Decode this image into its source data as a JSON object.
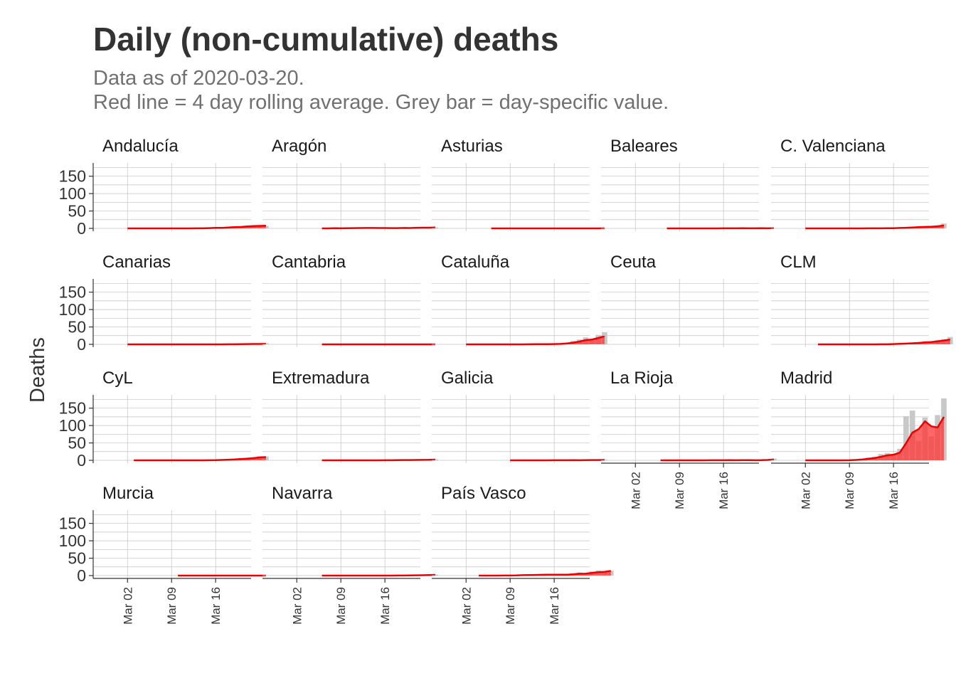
{
  "title": "Daily (non-cumulative) deaths",
  "subtitle_lines": [
    "Data as of 2020-03-20.",
    "Red line = 4 day rolling average. Grey bar = day-specific value."
  ],
  "colors": {
    "rolling_line": "#ee0000",
    "rolling_fill": "#ff3333",
    "bar": "#c8c8c8",
    "grid": "#c0c0c0",
    "axis": "#333333",
    "text": "#333333",
    "strip_text": "#1a1a1a"
  },
  "chart_data": {
    "type": "bar",
    "layout": "faceted small multiples (4 rows x 5 columns), shared axes",
    "ylabel": "Deaths",
    "xlabel": "",
    "x_ticks": [
      "Mar 02",
      "Mar 09",
      "Mar 16"
    ],
    "y_ticks": [
      0,
      50,
      100,
      150
    ],
    "ylim": [
      0,
      180
    ],
    "xlim": [
      "2020-02-26",
      "2020-03-21"
    ],
    "grid": true,
    "series_meaning": {
      "bars": "day-specific value",
      "line": "4 day rolling average"
    },
    "facets": [
      {
        "name": "Andalucía",
        "start": "2020-03-02",
        "values": [
          0,
          0,
          0,
          0,
          0,
          0,
          0,
          0,
          0,
          0,
          0,
          1,
          0,
          2,
          3,
          1,
          4,
          6,
          5,
          7,
          8,
          9,
          7
        ]
      },
      {
        "name": "Aragón",
        "start": "2020-03-06",
        "values": [
          0,
          0,
          1,
          0,
          1,
          1,
          2,
          1,
          1,
          0,
          2,
          0,
          1,
          2,
          1,
          3,
          2,
          2,
          3
        ]
      },
      {
        "name": "Asturias",
        "start": "2020-03-06",
        "values": [
          0,
          0,
          0,
          0,
          0,
          0,
          0,
          0,
          0,
          0,
          0,
          0,
          0,
          0,
          0,
          0,
          0,
          0,
          1
        ]
      },
      {
        "name": "Baleares",
        "start": "2020-03-07",
        "values": [
          0,
          0,
          0,
          0,
          0,
          0,
          0,
          0,
          0,
          1,
          0,
          0,
          1,
          0,
          0,
          1,
          0,
          1
        ]
      },
      {
        "name": "C. Valenciana",
        "start": "2020-03-02",
        "values": [
          0,
          0,
          0,
          0,
          0,
          0,
          0,
          0,
          0,
          0,
          1,
          0,
          0,
          1,
          1,
          3,
          2,
          5,
          4,
          6,
          5,
          9,
          14
        ]
      },
      {
        "name": "Canarias",
        "start": "2020-03-02",
        "values": [
          0,
          0,
          0,
          0,
          0,
          0,
          0,
          0,
          0,
          0,
          0,
          0,
          0,
          0,
          0,
          0,
          1,
          0,
          1,
          1,
          2,
          0,
          3
        ]
      },
      {
        "name": "Cantabria",
        "start": "2020-03-06",
        "values": [
          0,
          0,
          0,
          0,
          0,
          0,
          0,
          0,
          0,
          0,
          0,
          0,
          0,
          0,
          0,
          0,
          0,
          0,
          0
        ]
      },
      {
        "name": "Cataluña",
        "start": "2020-03-02",
        "values": [
          0,
          0,
          0,
          0,
          0,
          0,
          0,
          0,
          0,
          0,
          1,
          1,
          0,
          0,
          2,
          3,
          5,
          10,
          14,
          20,
          12,
          27,
          35
        ]
      },
      {
        "name": "Ceuta",
        "start": "",
        "values": []
      },
      {
        "name": "CLM",
        "start": "2020-03-04",
        "values": [
          0,
          0,
          0,
          0,
          0,
          0,
          0,
          0,
          0,
          0,
          1,
          0,
          2,
          3,
          4,
          3,
          6,
          9,
          8,
          12,
          15,
          21
        ]
      },
      {
        "name": "CyL",
        "start": "2020-03-03",
        "values": [
          0,
          0,
          0,
          0,
          0,
          0,
          0,
          0,
          0,
          0,
          0,
          0,
          1,
          1,
          2,
          3,
          4,
          6,
          7,
          8,
          12,
          11
        ]
      },
      {
        "name": "Extremadura",
        "start": "2020-03-06",
        "values": [
          0,
          0,
          0,
          0,
          0,
          0,
          0,
          0,
          0,
          0,
          1,
          0,
          1,
          1,
          1,
          1,
          2,
          2,
          3
        ]
      },
      {
        "name": "Galicia",
        "start": "2020-03-09",
        "values": [
          0,
          0,
          0,
          0,
          0,
          0,
          0,
          1,
          0,
          0,
          1,
          0,
          1,
          1,
          1,
          2
        ]
      },
      {
        "name": "La Rioja",
        "start": "2020-03-06",
        "values": [
          0,
          0,
          0,
          0,
          0,
          0,
          0,
          0,
          1,
          0,
          0,
          1,
          0,
          1,
          0,
          0,
          1,
          3,
          5
        ]
      },
      {
        "name": "Madrid",
        "start": "2020-03-02",
        "values": [
          0,
          0,
          0,
          0,
          0,
          0,
          0,
          1,
          3,
          5,
          8,
          10,
          18,
          21,
          16,
          33,
          127,
          143,
          56,
          123,
          69,
          130,
          178
        ]
      },
      {
        "name": "Murcia",
        "start": "2020-03-10",
        "values": [
          0,
          0,
          0,
          0,
          0,
          0,
          0,
          0,
          0,
          0,
          0,
          0,
          0,
          0,
          0
        ]
      },
      {
        "name": "Navarra",
        "start": "2020-03-06",
        "values": [
          0,
          0,
          0,
          0,
          0,
          0,
          0,
          0,
          0,
          0,
          0,
          0,
          1,
          0,
          1,
          1,
          2,
          2,
          3
        ]
      },
      {
        "name": "País Vasco",
        "start": "2020-03-04",
        "values": [
          0,
          0,
          0,
          0,
          1,
          0,
          1,
          3,
          2,
          1,
          3,
          4,
          2,
          1,
          4,
          7,
          9,
          3,
          12,
          15,
          13,
          14
        ]
      }
    ]
  }
}
